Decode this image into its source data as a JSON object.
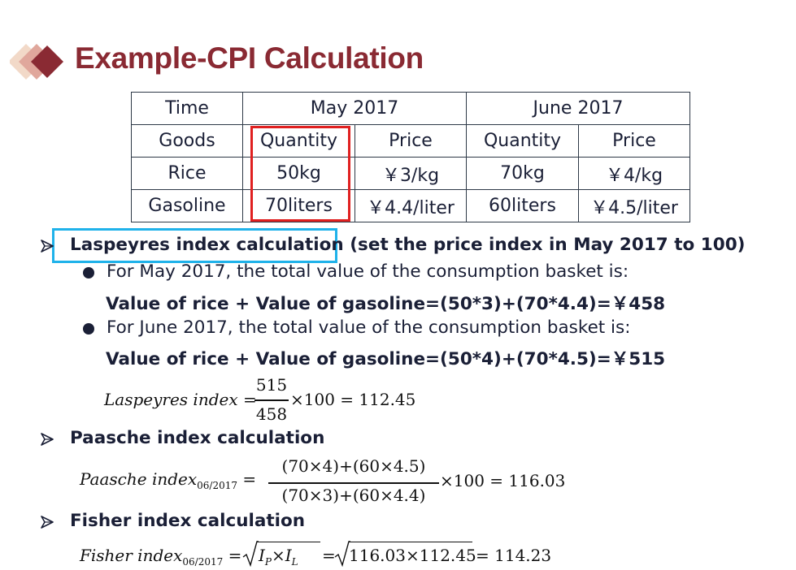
{
  "title": "Example-CPI Calculation",
  "table": {
    "rows": [
      [
        "Time",
        "May 2017",
        "June 2017"
      ],
      [
        "Goods",
        "Quantity",
        "Price",
        "Quantity",
        "Price"
      ],
      [
        "Rice",
        "50kg",
        "￥3/kg",
        "70kg",
        "￥4/kg"
      ],
      [
        "Gasoline",
        "70liters",
        "￥4.4/liter",
        "60liters",
        "￥4.5/liter"
      ]
    ]
  },
  "laspeyres": {
    "heading_boxed": "Laspeyres index calculation",
    "heading_rest": " (set the price index in May 2017 to 100)",
    "may_text": "For May 2017, the total value of the consumption basket is:",
    "may_calc": "Value of rice + Value of gasoline=(50*3)+(70*4.4)=￥458",
    "june_text": "For June 2017, the total value of the consumption basket is:",
    "june_calc": "Value of rice + Value of gasoline=(50*4)+(70*4.5)=￥515",
    "formula": {
      "label": "Laspeyres index",
      "numerator": "515",
      "denominator": "458",
      "rhs": "×100 = 112.45"
    }
  },
  "paasche": {
    "heading": "Paasche index calculation",
    "formula": {
      "label": "Paasche index",
      "subscript": "06/2017",
      "numerator": "(70×4)+(60×4.5)",
      "denominator": "(70×3)+(60×4.4)",
      "rhs": "×100 = 116.03"
    }
  },
  "fisher": {
    "heading": "Fisher index calculation",
    "formula": {
      "label": "Fisher index",
      "subscript": "06/2017",
      "root1_p": "I",
      "root1_p_sub": "P",
      "root1_times": "×",
      "root1_l": "I",
      "root1_l_sub": "L",
      "root2": "116.03×112.45",
      "result": "= 114.23"
    }
  },
  "colors": {
    "title": "#8a2a33",
    "text": "#1a1f36",
    "table_border": "#2e3947",
    "highlight_red": "#e02020",
    "highlight_blue": "#1fb2ea"
  },
  "icons": {
    "logo": "diamond-logo-icon",
    "bullet_level1": "arrowhead-bullet-icon",
    "bullet_level2": "round-bullet-icon"
  }
}
